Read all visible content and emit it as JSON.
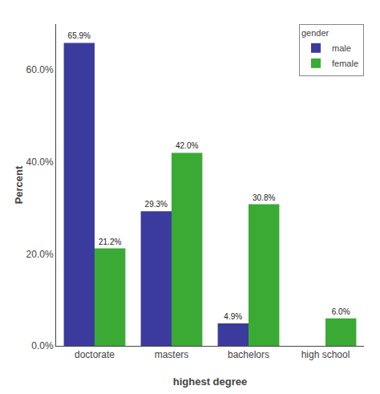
{
  "chart_data": {
    "type": "bar",
    "categories": [
      "doctorate",
      "masters",
      "bachelors",
      "high school"
    ],
    "series": [
      {
        "name": "male",
        "color": "#3B3B9E",
        "values": [
          65.9,
          29.3,
          4.9,
          0.0
        ],
        "value_labels": [
          "65.9%",
          "29.3%",
          "4.9%",
          null
        ]
      },
      {
        "name": "female",
        "color": "#3AAA35",
        "values": [
          21.2,
          42.0,
          30.8,
          6.0
        ],
        "value_labels": [
          "21.2%",
          "42.0%",
          "30.8%",
          "6.0%"
        ]
      }
    ],
    "xlabel": "highest degree",
    "ylabel": "Percent",
    "ylim": [
      0,
      70
    ],
    "yticks": [
      {
        "value": 0.0,
        "label": "0.0%"
      },
      {
        "value": 20.0,
        "label": "20.0%"
      },
      {
        "value": 40.0,
        "label": "40.0%"
      },
      {
        "value": 60.0,
        "label": "60.0%"
      }
    ],
    "legend": "upper right",
    "legend_title": "gender",
    "data_labels": true,
    "grid": false
  }
}
